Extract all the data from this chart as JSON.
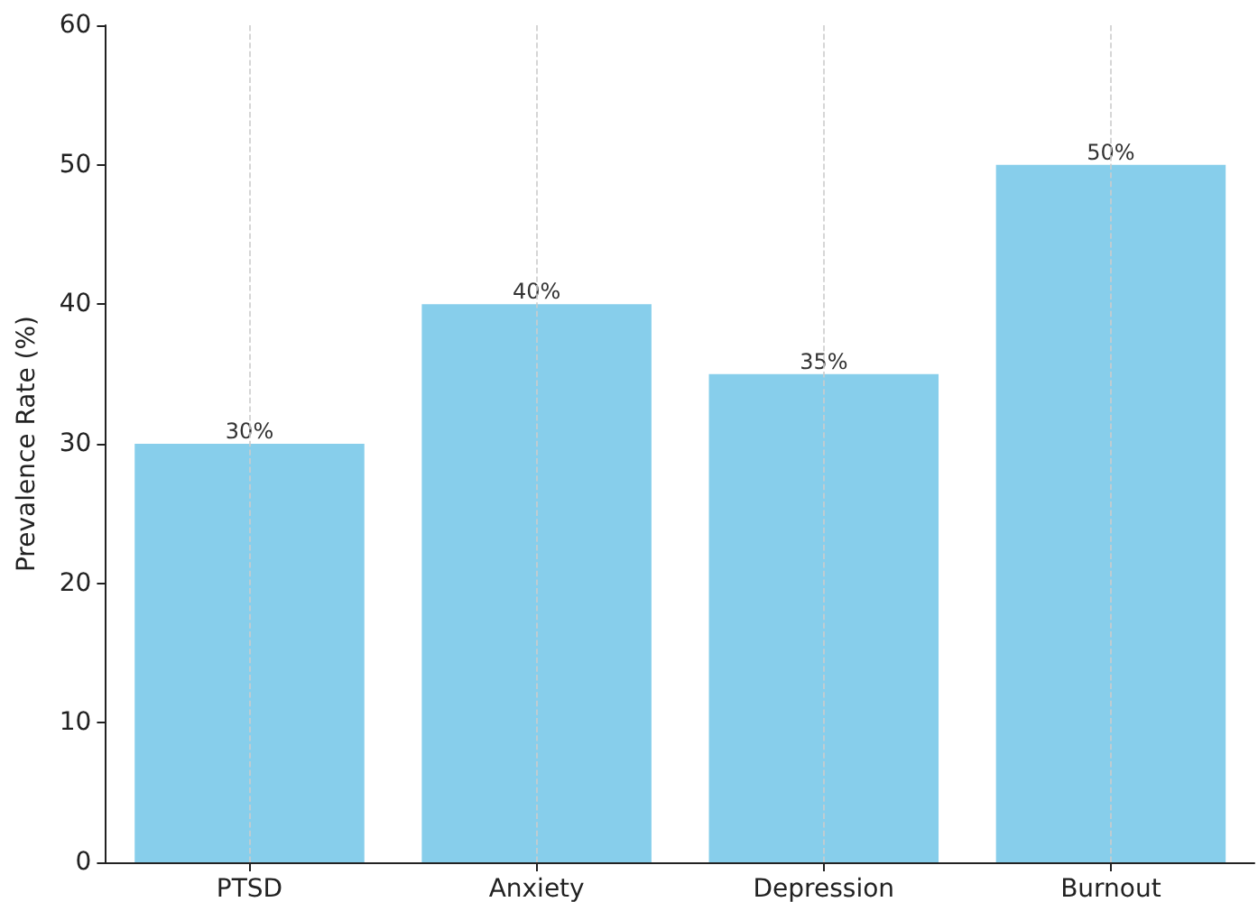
{
  "chart_data": {
    "type": "bar",
    "ylabel": "Prevalence Rate (%)",
    "categories": [
      "PTSD",
      "Anxiety",
      "Depression",
      "Burnout"
    ],
    "values": [
      30,
      40,
      35,
      50
    ],
    "color": "#87ceeb",
    "value_labels": [
      "30%",
      "40%",
      "35%",
      "50%"
    ],
    "ylim": [
      0,
      60
    ],
    "yticks": [
      0,
      10,
      20,
      30,
      40,
      50,
      60
    ],
    "grid": "x"
  }
}
